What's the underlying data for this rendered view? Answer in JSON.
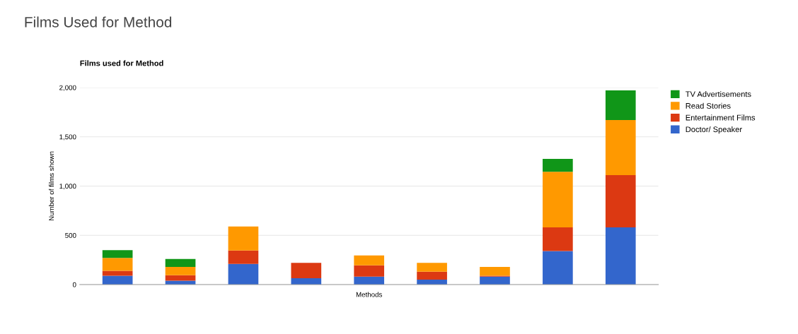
{
  "chart_data": {
    "type": "bar",
    "title": "Films Used for Method",
    "subtitle": "Films used for Method",
    "xlabel": "Methods",
    "ylabel": "Number of films shown",
    "categories": [
      null,
      null,
      null,
      null,
      null,
      null,
      null,
      null,
      null
    ],
    "stacked": true,
    "series": [
      {
        "name": "Doctor/ Speaker",
        "color": "#3366cc",
        "values": [
          90,
          40,
          210,
          65,
          80,
          50,
          80,
          340,
          580
        ]
      },
      {
        "name": "Entertainment Films",
        "color": "#dc3912",
        "values": [
          50,
          55,
          135,
          155,
          115,
          80,
          10,
          240,
          530
        ]
      },
      {
        "name": "Read Stories",
        "color": "#ff9900",
        "values": [
          130,
          85,
          245,
          0,
          100,
          90,
          90,
          565,
          560
        ]
      },
      {
        "name": "TV Advertisements",
        "color": "#109618",
        "values": [
          80,
          80,
          0,
          0,
          0,
          0,
          0,
          130,
          300
        ]
      }
    ],
    "ylim": [
      0,
      2000
    ],
    "yticks": [
      0,
      {
        "value": 500,
        "label": "500"
      },
      {
        "value": 1000,
        "label": "1,000"
      },
      {
        "value": 1500,
        "label": "1,500"
      },
      {
        "value": 2000,
        "label": "2,000"
      }
    ],
    "grid": "y",
    "legend": "top right"
  }
}
